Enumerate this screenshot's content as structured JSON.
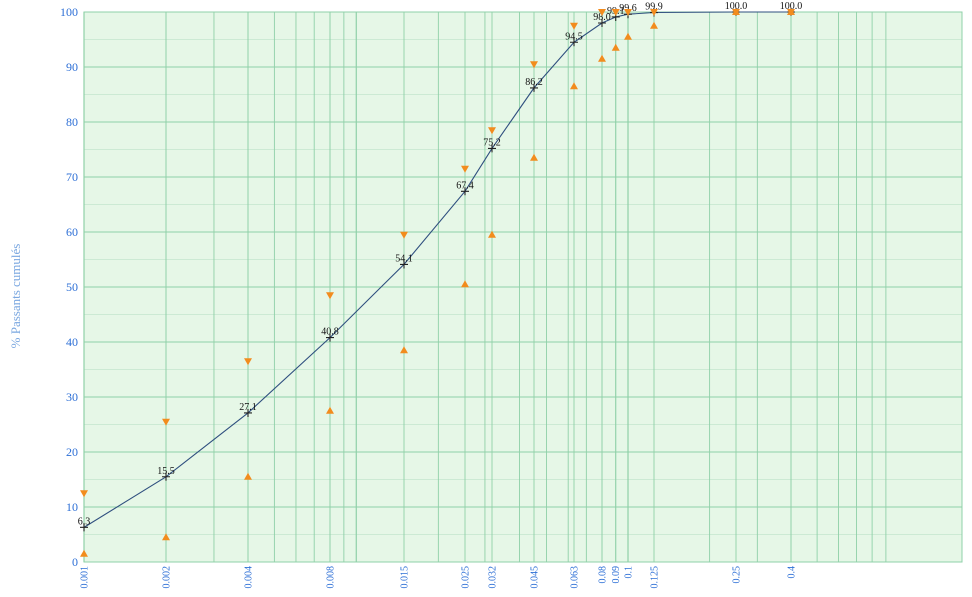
{
  "chart_data": {
    "type": "line",
    "ylabel": "% Passants cumulés",
    "xlabel": "",
    "title": "",
    "x_scale": "log",
    "ylim": [
      0,
      100
    ],
    "yticks": [
      0,
      10,
      20,
      30,
      40,
      50,
      60,
      70,
      80,
      90,
      100
    ],
    "ytick_labels": [
      "0",
      "10",
      "20",
      "30",
      "40",
      "50",
      "60",
      "70",
      "80",
      "90",
      "100"
    ],
    "xlim": [
      0.001,
      1.0
    ],
    "xticks": [
      0.001,
      0.002,
      0.004,
      0.008,
      0.015,
      0.025,
      0.032,
      0.045,
      0.063,
      0.08,
      0.09,
      0.1,
      0.125,
      0.25,
      0.4
    ],
    "xtick_labels": [
      "0.001",
      "0.002",
      "0.004",
      "0.008",
      "0.015",
      "0.025",
      "0.032",
      "0.045",
      "0.063",
      "0.08",
      "0.09",
      "0.1",
      "0.125",
      "0.25",
      "0.4"
    ],
    "grid": true,
    "series": [
      {
        "name": "",
        "marker": "plus",
        "color": "#2f4f7f",
        "x": [
          0.001,
          0.002,
          0.004,
          0.008,
          0.015,
          0.025,
          0.032,
          0.045,
          0.063,
          0.08,
          0.09,
          0.1,
          0.125,
          0.25,
          0.4
        ],
        "y": [
          6.3,
          15.5,
          27.1,
          40.8,
          54.1,
          67.4,
          75.2,
          86.2,
          94.5,
          98.0,
          99.1,
          99.6,
          99.9,
          100.0,
          100.0
        ],
        "labels": [
          "6.3",
          "15.5",
          "27.1",
          "40.8",
          "54.1",
          "67.4",
          "75.2",
          "86.2",
          "94.5",
          "98.0",
          "99.1",
          "99.6",
          "99.9",
          "100.0",
          "100.0"
        ]
      },
      {
        "name": "",
        "marker": "triangle-down",
        "color": "#f28c1e",
        "x": [
          0.001,
          0.002,
          0.004,
          0.008,
          0.015,
          0.025,
          0.032,
          0.045,
          0.063,
          0.08,
          0.09,
          0.1,
          0.125,
          0.25,
          0.4
        ],
        "y": [
          12.5,
          25.5,
          36.5,
          48.5,
          59.5,
          71.5,
          78.5,
          90.5,
          97.5,
          100.0,
          100.0,
          100.0,
          100.0,
          100.0,
          100.0
        ]
      },
      {
        "name": "",
        "marker": "triangle-up",
        "color": "#f28c1e",
        "x": [
          0.001,
          0.002,
          0.004,
          0.008,
          0.015,
          0.025,
          0.032,
          0.045,
          0.063,
          0.08,
          0.09,
          0.1,
          0.125,
          0.25,
          0.4
        ],
        "y": [
          1.5,
          4.5,
          15.5,
          27.5,
          38.5,
          50.5,
          59.5,
          73.5,
          86.5,
          91.5,
          93.5,
          95.5,
          97.5,
          100.0,
          100.0
        ]
      }
    ]
  },
  "colors": {
    "plot_background": "#e6f7e7",
    "grid_line": "#8fd0a8",
    "axis_text": "#2d6fd6",
    "curve": "#2f4f7f",
    "triangle": "#f28c1e"
  }
}
